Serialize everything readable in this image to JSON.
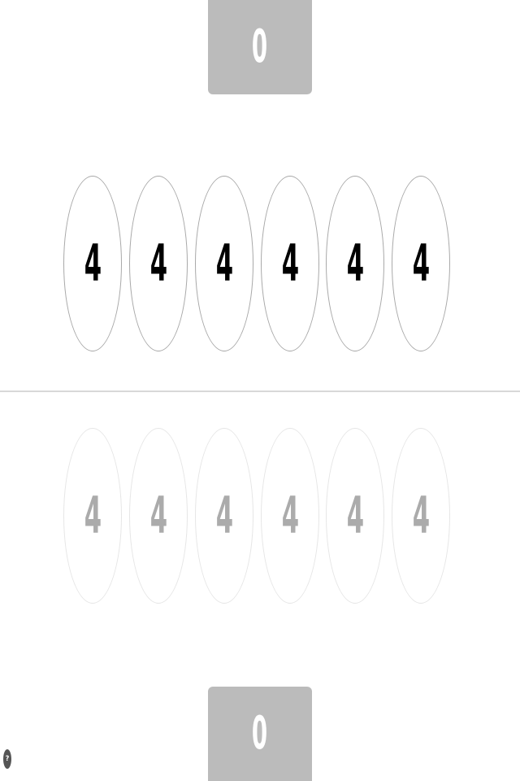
{
  "opponent": {
    "store_score": "0",
    "pits": [
      "4",
      "4",
      "4",
      "4",
      "4",
      "4"
    ]
  },
  "player": {
    "store_score": "0",
    "pits": [
      "4",
      "4",
      "4",
      "4",
      "4",
      "4"
    ]
  },
  "help": {
    "label": "?"
  },
  "colors": {
    "store_background": "#bbbbbb",
    "store_text": "#ffffff",
    "active_pit_border": "#a8a8a8",
    "active_pit_text": "#000000",
    "inactive_pit_border": "#e6e6e6",
    "inactive_pit_text": "#ababab",
    "divider": "#d8d8d8",
    "help_button": "#555555"
  }
}
